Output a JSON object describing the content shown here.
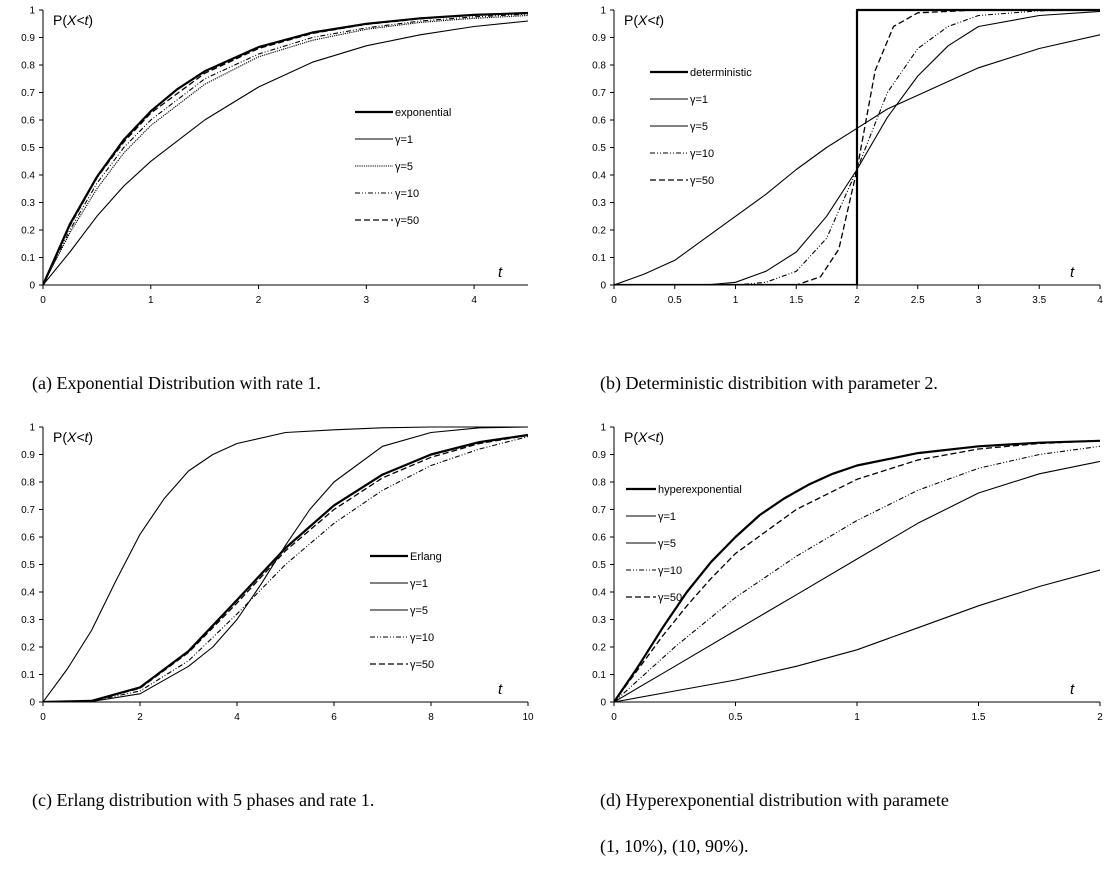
{
  "chart_data": [
    {
      "type": "line",
      "caption": "(a) Exponential Distribution with rate 1.",
      "ylabel_prefix": "P(",
      "ylabel_var": "X<t",
      "ylabel_suffix": ")",
      "xlabel": "t",
      "xlim": [
        0,
        4.5
      ],
      "ylim": [
        0,
        1
      ],
      "xticks": [
        0,
        1,
        2,
        3,
        4
      ],
      "xtick_labels": [
        "0",
        "1",
        "2",
        "3",
        "4"
      ],
      "yticks": [
        0,
        0.1,
        0.2,
        0.3,
        0.4,
        0.5,
        0.6,
        0.7,
        0.8,
        0.9,
        1
      ],
      "ytick_labels": [
        "0",
        "0.1",
        "0.2",
        "0.3",
        "0.4",
        "0.5",
        "0.6",
        "0.7",
        "0.8",
        "0.9",
        "1"
      ],
      "legend_position": "center-right",
      "series": [
        {
          "name": "exponential",
          "style": "thick",
          "x": [
            0,
            0.25,
            0.5,
            0.75,
            1,
            1.25,
            1.5,
            2,
            2.5,
            3,
            3.5,
            4,
            4.5
          ],
          "y": [
            0,
            0.221,
            0.393,
            0.528,
            0.632,
            0.713,
            0.777,
            0.865,
            0.918,
            0.95,
            0.97,
            0.982,
            0.989
          ]
        },
        {
          "name": "γ=1",
          "style": "solid",
          "x": [
            0,
            0.25,
            0.5,
            0.75,
            1,
            1.5,
            2,
            2.5,
            3,
            3.5,
            4,
            4.5
          ],
          "y": [
            0,
            0.12,
            0.25,
            0.36,
            0.45,
            0.6,
            0.72,
            0.81,
            0.87,
            0.91,
            0.94,
            0.96
          ]
        },
        {
          "name": "γ=5",
          "style": "dotted",
          "x": [
            0,
            0.25,
            0.5,
            0.75,
            1,
            1.5,
            2,
            2.5,
            3,
            3.5,
            4,
            4.5
          ],
          "y": [
            0,
            0.19,
            0.35,
            0.48,
            0.58,
            0.73,
            0.83,
            0.89,
            0.93,
            0.955,
            0.97,
            0.98
          ]
        },
        {
          "name": "γ=10",
          "style": "dashdot",
          "x": [
            0,
            0.25,
            0.5,
            0.75,
            1,
            1.5,
            2,
            2.5,
            3,
            3.5,
            4,
            4.5
          ],
          "y": [
            0,
            0.2,
            0.37,
            0.5,
            0.6,
            0.75,
            0.84,
            0.9,
            0.935,
            0.96,
            0.975,
            0.985
          ]
        },
        {
          "name": "γ=50",
          "style": "dashed",
          "x": [
            0,
            0.25,
            0.5,
            0.75,
            1,
            1.5,
            2,
            2.5,
            3,
            3.5,
            4,
            4.5
          ],
          "y": [
            0,
            0.215,
            0.39,
            0.52,
            0.625,
            0.77,
            0.86,
            0.915,
            0.948,
            0.968,
            0.982,
            0.99
          ]
        }
      ]
    },
    {
      "type": "line",
      "caption": "(b) Deterministic distribition with parameter 2.",
      "ylabel_prefix": "P(",
      "ylabel_var": "X<t",
      "ylabel_suffix": ")",
      "xlabel": "t",
      "xlim": [
        0,
        4
      ],
      "ylim": [
        0,
        1
      ],
      "xticks": [
        0,
        0.5,
        1,
        1.5,
        2,
        2.5,
        3,
        3.5,
        4
      ],
      "xtick_labels": [
        "0",
        "0.5",
        "1",
        "1.5",
        "2",
        "2.5",
        "3",
        "3.5",
        "4"
      ],
      "yticks": [
        0,
        0.1,
        0.2,
        0.3,
        0.4,
        0.5,
        0.6,
        0.7,
        0.8,
        0.9,
        1
      ],
      "ytick_labels": [
        "0",
        "0.1",
        "0.2",
        "0.3",
        "0.4",
        "0.5",
        "0.6",
        "0.7",
        "0.8",
        "0.9",
        "1"
      ],
      "legend_position": "upper-left",
      "series": [
        {
          "name": "deterministic",
          "style": "thick",
          "x": [
            0,
            2,
            2,
            4
          ],
          "y": [
            0,
            0,
            1,
            1
          ]
        },
        {
          "name": "γ=1",
          "style": "solid",
          "x": [
            0,
            0.25,
            0.5,
            0.75,
            1,
            1.25,
            1.5,
            1.75,
            2,
            2.25,
            2.5,
            2.75,
            3,
            3.5,
            4
          ],
          "y": [
            0,
            0.04,
            0.09,
            0.17,
            0.25,
            0.33,
            0.42,
            0.5,
            0.57,
            0.64,
            0.69,
            0.74,
            0.79,
            0.86,
            0.91
          ]
        },
        {
          "name": "γ=5",
          "style": "solid",
          "x": [
            0,
            0.75,
            1,
            1.25,
            1.5,
            1.75,
            2,
            2.25,
            2.5,
            2.75,
            3,
            3.5,
            4
          ],
          "y": [
            0,
            0,
            0.01,
            0.05,
            0.12,
            0.25,
            0.42,
            0.61,
            0.76,
            0.87,
            0.94,
            0.98,
            0.995
          ]
        },
        {
          "name": "γ=10",
          "style": "dashdot",
          "x": [
            0,
            1,
            1.25,
            1.5,
            1.75,
            2,
            2.25,
            2.5,
            2.75,
            3,
            3.5,
            4
          ],
          "y": [
            0,
            0,
            0.01,
            0.05,
            0.17,
            0.42,
            0.7,
            0.86,
            0.94,
            0.98,
            0.997,
            1
          ]
        },
        {
          "name": "γ=50",
          "style": "dashed",
          "x": [
            0,
            1.5,
            1.7,
            1.85,
            2,
            2.15,
            2.3,
            2.5,
            3,
            4
          ],
          "y": [
            0,
            0,
            0.03,
            0.13,
            0.42,
            0.78,
            0.94,
            0.99,
            1,
            1
          ]
        }
      ]
    },
    {
      "type": "line",
      "caption": "(c) Erlang distribution with 5 phases and rate 1.",
      "ylabel_prefix": "P(",
      "ylabel_var": "X<t",
      "ylabel_suffix": ")",
      "xlabel": "t",
      "xlim": [
        0,
        10
      ],
      "ylim": [
        0,
        1
      ],
      "xticks": [
        0,
        2,
        4,
        6,
        8,
        10
      ],
      "xtick_labels": [
        "0",
        "2",
        "4",
        "6",
        "8",
        "10"
      ],
      "yticks": [
        0,
        0.1,
        0.2,
        0.3,
        0.4,
        0.5,
        0.6,
        0.7,
        0.8,
        0.9,
        1
      ],
      "ytick_labels": [
        "0",
        "0.1",
        "0.2",
        "0.3",
        "0.4",
        "0.5",
        "0.6",
        "0.7",
        "0.8",
        "0.9",
        "1"
      ],
      "legend_position": "center-right",
      "series": [
        {
          "name": "Erlang",
          "style": "thick",
          "x": [
            0,
            1,
            2,
            3,
            4,
            5,
            6,
            7,
            8,
            9,
            10
          ],
          "y": [
            0,
            0.004,
            0.053,
            0.185,
            0.371,
            0.56,
            0.715,
            0.827,
            0.9,
            0.945,
            0.971
          ]
        },
        {
          "name": "γ=1",
          "style": "solid",
          "x": [
            0,
            0.5,
            1,
            1.5,
            2,
            2.5,
            3,
            3.5,
            4,
            5,
            6,
            7,
            8,
            10
          ],
          "y": [
            0,
            0.12,
            0.26,
            0.44,
            0.61,
            0.74,
            0.84,
            0.9,
            0.94,
            0.98,
            0.99,
            0.997,
            1,
            1
          ]
        },
        {
          "name": "γ=5",
          "style": "solid",
          "x": [
            0,
            1,
            2,
            3,
            3.5,
            4,
            4.5,
            5,
            5.5,
            6,
            7,
            8,
            9,
            10
          ],
          "y": [
            0,
            0.002,
            0.03,
            0.13,
            0.2,
            0.3,
            0.43,
            0.57,
            0.7,
            0.8,
            0.93,
            0.98,
            0.997,
            1
          ]
        },
        {
          "name": "γ=10",
          "style": "dashdot",
          "x": [
            0,
            1,
            2,
            3,
            4,
            5,
            6,
            7,
            8,
            9,
            10
          ],
          "y": [
            0,
            0.003,
            0.04,
            0.15,
            0.32,
            0.5,
            0.65,
            0.77,
            0.86,
            0.92,
            0.965
          ]
        },
        {
          "name": "γ=50",
          "style": "dashed",
          "x": [
            0,
            1,
            2,
            3,
            4,
            5,
            6,
            7,
            8,
            9,
            10
          ],
          "y": [
            0,
            0.004,
            0.05,
            0.18,
            0.36,
            0.55,
            0.7,
            0.815,
            0.89,
            0.94,
            0.97
          ]
        }
      ]
    },
    {
      "type": "line",
      "caption": "(d) Hyperexponential distribution with paramete",
      "caption_line2": "(1, 10%), (10, 90%).",
      "ylabel_prefix": "P(",
      "ylabel_var": "X<t",
      "ylabel_suffix": ")",
      "xlabel": "t",
      "xlim": [
        0,
        2
      ],
      "ylim": [
        0,
        1
      ],
      "xticks": [
        0,
        0.5,
        1,
        1.5,
        2
      ],
      "xtick_labels": [
        "0",
        "0.5",
        "1",
        "1.5",
        "2"
      ],
      "yticks": [
        0,
        0.1,
        0.2,
        0.3,
        0.4,
        0.5,
        0.6,
        0.7,
        0.8,
        0.9,
        1
      ],
      "ytick_labels": [
        "0",
        "0.1",
        "0.2",
        "0.3",
        "0.4",
        "0.5",
        "0.6",
        "0.7",
        "0.8",
        "0.9",
        "1"
      ],
      "legend_position": "upper-left",
      "series": [
        {
          "name": "hyperexponential",
          "style": "thick",
          "x": [
            0,
            0.1,
            0.2,
            0.3,
            0.4,
            0.5,
            0.6,
            0.7,
            0.8,
            0.9,
            1,
            1.25,
            1.5,
            1.75,
            2
          ],
          "y": [
            0,
            0.13,
            0.27,
            0.4,
            0.51,
            0.6,
            0.68,
            0.74,
            0.79,
            0.83,
            0.86,
            0.905,
            0.93,
            0.943,
            0.95
          ]
        },
        {
          "name": "γ=1",
          "style": "solid",
          "x": [
            0,
            0.25,
            0.5,
            0.75,
            1,
            1.25,
            1.5,
            1.75,
            2
          ],
          "y": [
            0,
            0.04,
            0.08,
            0.13,
            0.19,
            0.27,
            0.35,
            0.42,
            0.48
          ]
        },
        {
          "name": "γ=5",
          "style": "solid",
          "x": [
            0,
            0.25,
            0.5,
            0.75,
            1,
            1.25,
            1.5,
            1.75,
            2
          ],
          "y": [
            0,
            0.13,
            0.26,
            0.39,
            0.52,
            0.65,
            0.76,
            0.83,
            0.875
          ]
        },
        {
          "name": "γ=10",
          "style": "dashdot",
          "x": [
            0,
            0.25,
            0.5,
            0.75,
            1,
            1.25,
            1.5,
            1.75,
            2
          ],
          "y": [
            0,
            0.2,
            0.38,
            0.53,
            0.66,
            0.77,
            0.85,
            0.9,
            0.93
          ]
        },
        {
          "name": "γ=50",
          "style": "dashed",
          "x": [
            0,
            0.1,
            0.2,
            0.3,
            0.4,
            0.5,
            0.75,
            1,
            1.25,
            1.5,
            1.75,
            2
          ],
          "y": [
            0,
            0.12,
            0.24,
            0.35,
            0.45,
            0.54,
            0.7,
            0.81,
            0.88,
            0.92,
            0.94,
            0.95
          ]
        }
      ]
    }
  ]
}
